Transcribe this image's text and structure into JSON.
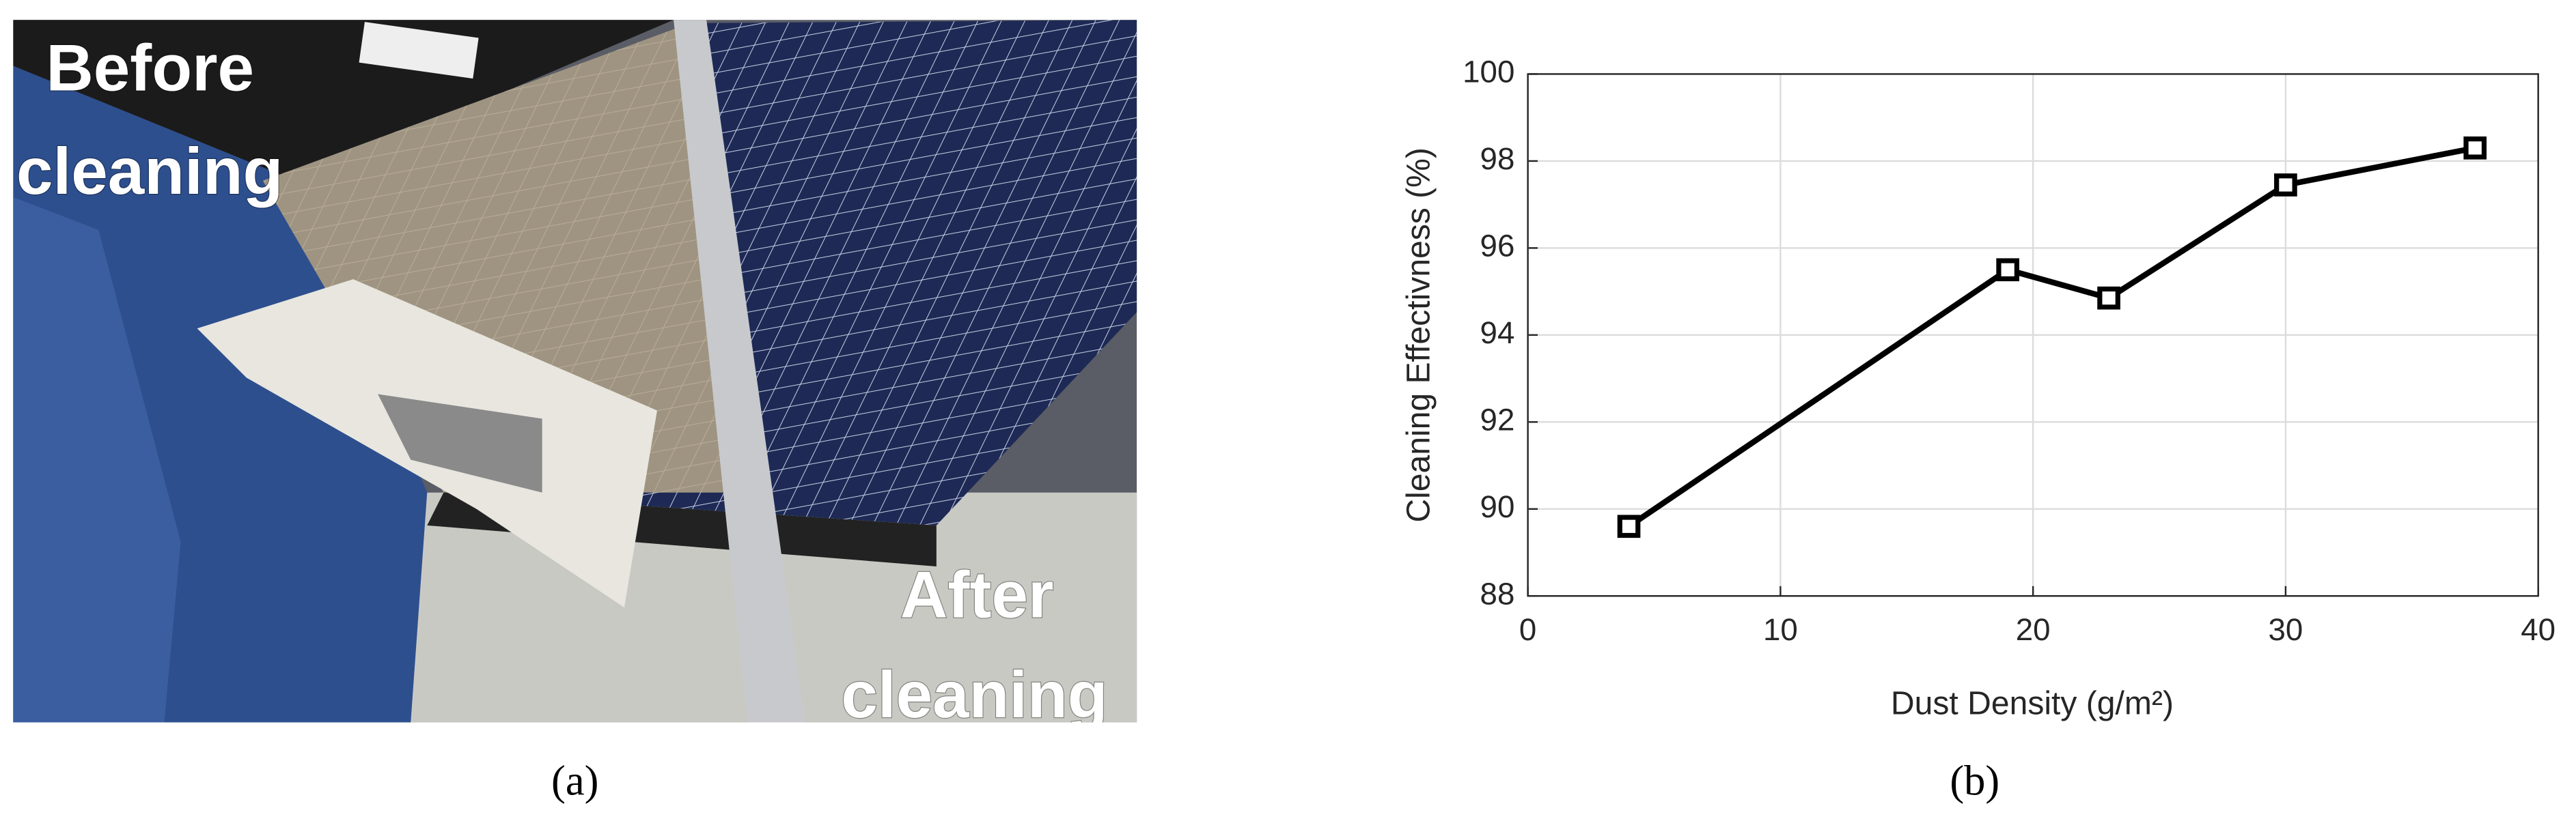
{
  "photo": {
    "before_label": [
      "Before",
      "cleaning"
    ],
    "after_label": [
      "After",
      "cleaning"
    ],
    "caption": "(a)"
  },
  "chart_data": {
    "type": "line",
    "caption": "(b)",
    "x_label": "Dust Density (g/m²)",
    "y_label": "Cleaning Effectivness (%)",
    "x": [
      4,
      19,
      23,
      30,
      37.5
    ],
    "series": [
      {
        "color": "#000000",
        "values": [
          89.6,
          95.5,
          94.85,
          97.45,
          98.3
        ]
      }
    ],
    "xlim": [
      0,
      40
    ],
    "xticks": [
      0,
      10,
      20,
      30,
      40
    ],
    "ylim": [
      88,
      100
    ],
    "yticks": [
      88,
      90,
      92,
      94,
      96,
      98,
      100
    ],
    "grid": true
  }
}
